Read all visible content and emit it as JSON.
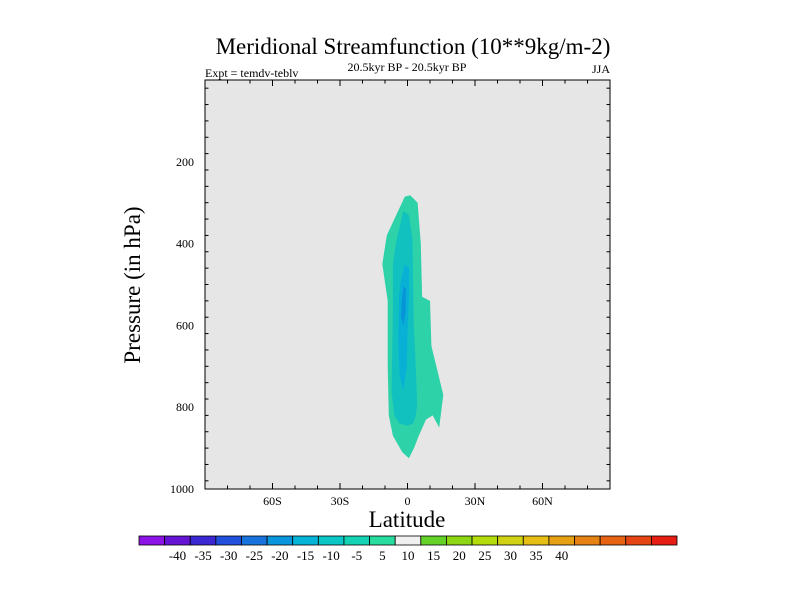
{
  "chart_data": {
    "type": "contour",
    "title": "Meridional Streamfunction (10**9kg/m-2)",
    "subtitle_left": "Expt = temdv-teblv",
    "subtitle_center": "20.5kyr BP - 20.5kyr BP",
    "subtitle_right": "JJA",
    "xlabel": "Latitude",
    "ylabel": "Pressure (in hPa)",
    "xlim": [
      -90,
      90
    ],
    "ylim": [
      1000,
      0
    ],
    "x_ticks": [
      {
        "value": -60,
        "label": "60S"
      },
      {
        "value": -30,
        "label": "30S"
      },
      {
        "value": 0,
        "label": "0"
      },
      {
        "value": 30,
        "label": "30N"
      },
      {
        "value": 60,
        "label": "60N"
      }
    ],
    "y_ticks": [
      {
        "value": 200,
        "label": "200"
      },
      {
        "value": 400,
        "label": "400"
      },
      {
        "value": 600,
        "label": "600"
      },
      {
        "value": 800,
        "label": "800"
      },
      {
        "value": 1000,
        "label": "1000"
      }
    ],
    "background_color": "#e6e6e6",
    "contour_regions": [
      {
        "name": "band-minus-10-to-minus-5",
        "level_range": [
          -10,
          -5
        ],
        "color": "#2ed2a8",
        "outline": [
          [
            -1.2,
            285
          ],
          [
            1.2,
            282
          ],
          [
            4.5,
            300
          ],
          [
            5.9,
            400
          ],
          [
            6.5,
            530
          ],
          [
            10,
            540
          ],
          [
            10.6,
            650
          ],
          [
            15.9,
            770
          ],
          [
            14.1,
            850
          ],
          [
            11.2,
            820
          ],
          [
            8.2,
            830
          ],
          [
            5,
            870
          ],
          [
            2.9,
            900
          ],
          [
            0.6,
            925
          ],
          [
            -2.3,
            910
          ],
          [
            -6.5,
            870
          ],
          [
            -8.3,
            820
          ],
          [
            -8.8,
            700
          ],
          [
            -8.8,
            590
          ],
          [
            -8.8,
            540
          ],
          [
            -11.2,
            450
          ],
          [
            -9.2,
            380
          ]
        ]
      },
      {
        "name": "band-minus-15-to-minus-10",
        "level_range": [
          -15,
          -10
        ],
        "color": "#11c1bf",
        "outline": [
          [
            -1.8,
            320
          ],
          [
            0.6,
            330
          ],
          [
            2.2,
            390
          ],
          [
            2.4,
            460
          ],
          [
            2.8,
            600
          ],
          [
            3.5,
            680
          ],
          [
            4.3,
            790
          ],
          [
            3.8,
            820
          ],
          [
            2.5,
            840
          ],
          [
            0,
            845
          ],
          [
            -3.5,
            840
          ],
          [
            -5.9,
            820
          ],
          [
            -7.1,
            760
          ],
          [
            -6.8,
            670
          ],
          [
            -6.5,
            560
          ],
          [
            -6.5,
            450
          ],
          [
            -5.2,
            400
          ]
        ]
      },
      {
        "name": "band-minus-20-to-minus-15",
        "level_range": [
          -20,
          -15
        ],
        "color": "#08b0d6",
        "outline": [
          [
            -1.2,
            450
          ],
          [
            0.6,
            460
          ],
          [
            0.6,
            540
          ],
          [
            0,
            620
          ],
          [
            -0.3,
            700
          ],
          [
            -1.9,
            760
          ],
          [
            -3.5,
            720
          ],
          [
            -4.1,
            630
          ],
          [
            -3.8,
            530
          ],
          [
            -2.9,
            490
          ]
        ]
      },
      {
        "name": "band-minus-25-to-minus-20",
        "level_range": [
          -25,
          -20
        ],
        "color": "#0696d8",
        "outline": [
          [
            -1.8,
            505
          ],
          [
            -0.6,
            510
          ],
          [
            -0.9,
            570
          ],
          [
            -1.8,
            600
          ],
          [
            -2.9,
            580
          ],
          [
            -2.6,
            540
          ]
        ]
      }
    ],
    "colorbar": {
      "colors": [
        "#8c14e6",
        "#6414d2",
        "#3c28d2",
        "#2050dc",
        "#1873dc",
        "#0a96dc",
        "#06b4d8",
        "#0ac6c6",
        "#14d2b4",
        "#28dca0",
        "#f0f0f0",
        "#64d228",
        "#8cd614",
        "#b4dc0a",
        "#d2d214",
        "#e6be14",
        "#e6a014",
        "#e68214",
        "#e66414",
        "#e64614",
        "#e61e14"
      ],
      "labels": [
        "-40",
        "-35",
        "-30",
        "-25",
        "-20",
        "-15",
        "-10",
        "-5",
        "5",
        "10",
        "15",
        "20",
        "25",
        "30",
        "35",
        "40"
      ]
    }
  }
}
